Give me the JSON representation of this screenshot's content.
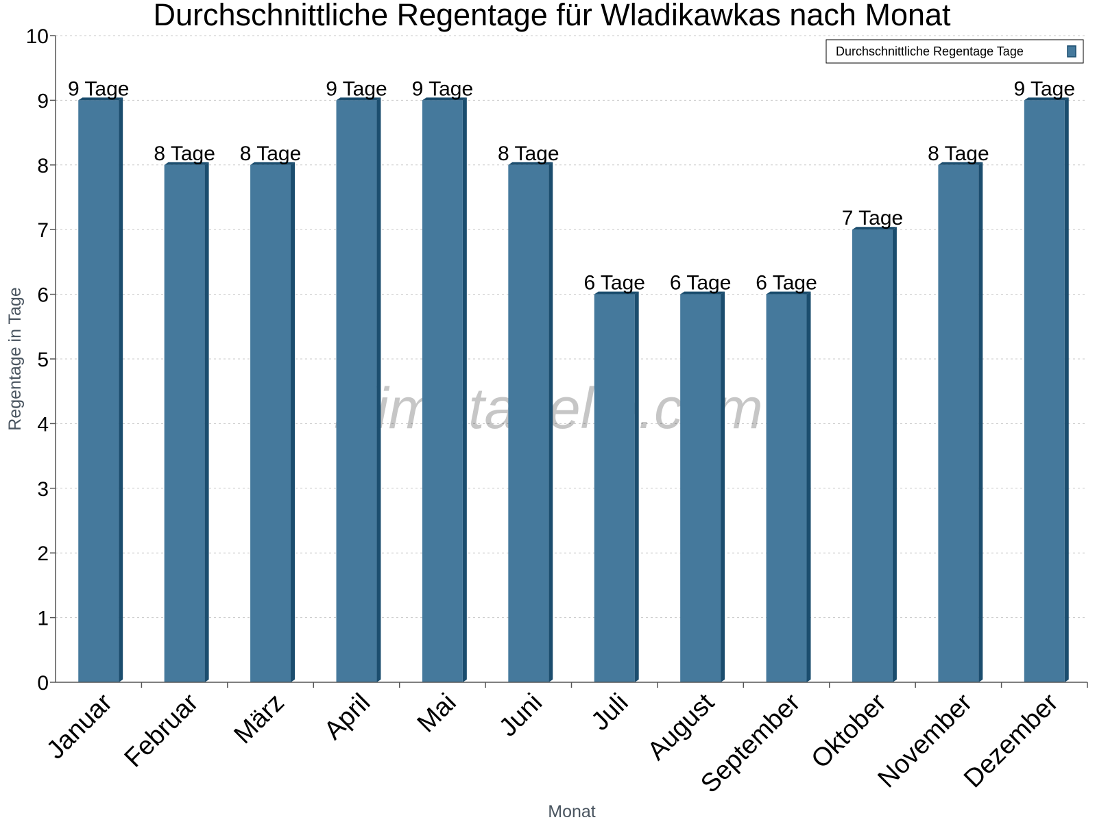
{
  "chart_data": {
    "type": "bar",
    "title": "Durchschnittliche Regentage für Wladikawkas nach Monat",
    "xlabel": "Monat",
    "ylabel": "Regentage in Tage",
    "categories": [
      "Januar",
      "Februar",
      "März",
      "April",
      "Mai",
      "Juni",
      "Juli",
      "August",
      "September",
      "Oktober",
      "November",
      "Dezember"
    ],
    "series": [
      {
        "name": "Durchschnittliche Regentage Tage",
        "values": [
          9,
          8,
          8,
          9,
          9,
          8,
          6,
          6,
          6,
          7,
          8,
          9
        ],
        "labels": [
          "9 Tage",
          "8 Tage",
          "8 Tage",
          "9 Tage",
          "9 Tage",
          "8 Tage",
          "6 Tage",
          "6 Tage",
          "6 Tage",
          "7 Tage",
          "8 Tage",
          "9 Tage"
        ],
        "color": "#45799c",
        "edge_color": "#1b4d6e"
      }
    ],
    "yticks": [
      "0",
      "1",
      "2",
      "3",
      "4",
      "5",
      "6",
      "7",
      "8",
      "9",
      "10"
    ],
    "ylim": [
      0,
      10
    ],
    "grid": true,
    "legend_position": "top-right",
    "watermark": "klimatabelle.com"
  }
}
